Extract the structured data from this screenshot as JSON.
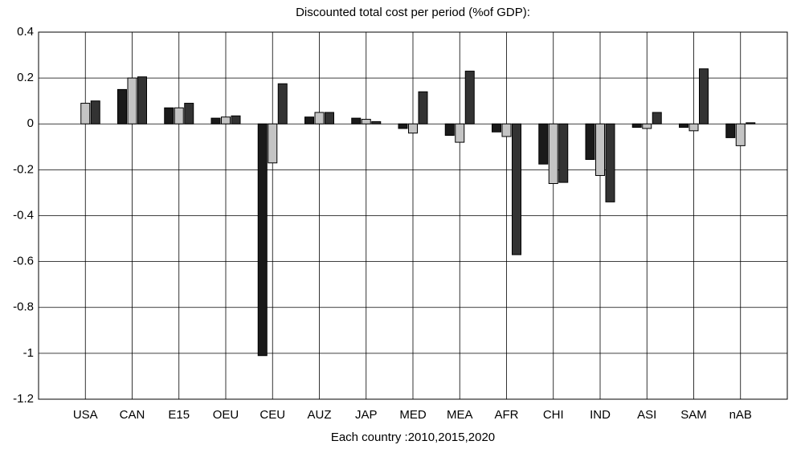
{
  "chart_data": {
    "type": "bar",
    "title": "Discounted total cost per period (%of GDP):",
    "xlabel": "Each country :2010,2015,2020",
    "categories": [
      "USA",
      "CAN",
      "E15",
      "OEU",
      "CEU",
      "AUZ",
      "JAP",
      "MED",
      "MEA",
      "AFR",
      "CHI",
      "IND",
      "ASI",
      "SAM",
      "nAB"
    ],
    "series": [
      {
        "color": "#1a1a1a",
        "values": [
          0,
          0.15,
          0.07,
          0.025,
          -1.01,
          0.03,
          0.025,
          -0.02,
          -0.05,
          -0.035,
          -0.175,
          -0.155,
          -0.015,
          -0.015,
          -0.06
        ]
      },
      {
        "color": "#c4c4c4",
        "values": [
          0.09,
          0.2,
          0.07,
          0.03,
          -0.17,
          0.05,
          0.02,
          -0.04,
          -0.08,
          -0.055,
          -0.26,
          -0.225,
          -0.02,
          -0.03,
          -0.095
        ]
      },
      {
        "color": "#333333",
        "values": [
          0.1,
          0.205,
          0.09,
          0.035,
          0.175,
          0.05,
          0.01,
          0.14,
          0.23,
          -0.57,
          -0.255,
          -0.34,
          0.05,
          0.24,
          0.005
        ]
      }
    ],
    "ylim": [
      -1.2,
      0.4
    ],
    "yticks": [
      0.4,
      0.2,
      0,
      -0.2,
      -0.4,
      -0.6,
      -0.8,
      -1,
      -1.2
    ],
    "grid": true
  }
}
